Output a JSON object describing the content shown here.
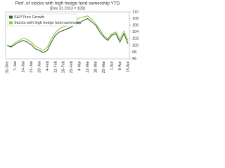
{
  "chart_data": {
    "type": "line",
    "title": "Perf. of stocks with high hedge fund ownership YTD",
    "subtitle": "(Dec 31 2013 = 100)",
    "categories": [
      "31-Dec",
      null,
      "7-Jan",
      null,
      "14-Jan",
      null,
      "21-Jan",
      null,
      "28-Jan",
      null,
      "4-Feb",
      null,
      "11-Feb",
      null,
      "18-Feb",
      null,
      "25-Feb",
      null,
      "4-Mar",
      null,
      "11-Mar",
      null,
      "18-Mar",
      null,
      "25-Mar",
      null,
      "1-Apr",
      null,
      "8-Apr",
      null,
      "15-Apr"
    ],
    "series": [
      {
        "name": "S&P Pure Growth",
        "color": "#2e6b2e",
        "values": [
          100,
          99.5,
          100.3,
          101,
          101.5,
          101,
          100.2,
          99,
          98.5,
          97.8,
          98.5,
          101,
          103,
          104,
          104.5,
          105,
          105.5,
          106.5,
          106.8,
          107.5,
          108,
          107,
          106,
          104,
          102.5,
          101.5,
          103,
          103.5,
          101,
          103.5,
          100.5
        ]
      },
      {
        "name": "Stocks with high hedge fund ownership",
        "color": "#9bc53d",
        "values": [
          100,
          99.8,
          100.8,
          101.5,
          102.2,
          101.8,
          101,
          99.8,
          99.2,
          98.5,
          99.5,
          102,
          103.8,
          105,
          105.5,
          106,
          106.5,
          107.5,
          108.2,
          108.5,
          108.8,
          107.8,
          106.5,
          104.8,
          103,
          102,
          103.5,
          104,
          101.8,
          104.3,
          101.5
        ]
      }
    ],
    "ylim": [
      96,
      110
    ],
    "yticks": [
      96,
      98,
      100,
      102,
      104,
      106,
      108,
      110
    ],
    "grid": false,
    "legend": "upper-left"
  }
}
